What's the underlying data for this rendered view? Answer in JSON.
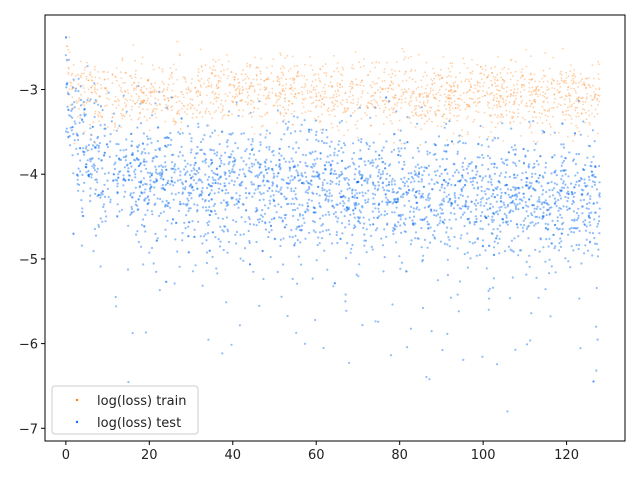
{
  "chart_data": {
    "type": "scatter",
    "title": "",
    "xlabel": "",
    "ylabel": "",
    "xlim": [
      -5,
      134
    ],
    "ylim": [
      -7.15,
      -2.12
    ],
    "x_ticks": [
      0,
      20,
      40,
      60,
      80,
      100,
      120
    ],
    "y_ticks": [
      -7,
      -6,
      -5,
      -4,
      -3
    ],
    "x_tick_labels": [
      "0",
      "20",
      "40",
      "60",
      "80",
      "100",
      "120"
    ],
    "y_tick_labels": [
      "−7",
      "−6",
      "−5",
      "−4",
      "−3"
    ],
    "grid": false,
    "legend_position": "lower-left",
    "series": [
      {
        "name": "log(loss) train",
        "color": "#ff7f0e",
        "x_range": [
          0,
          128
        ],
        "trend": [
          {
            "x": 0,
            "y": -2.55
          },
          {
            "x": 1,
            "y": -2.85
          },
          {
            "x": 3,
            "y": -3.02
          },
          {
            "x": 10,
            "y": -3.1
          },
          {
            "x": 20,
            "y": -3.08
          },
          {
            "x": 40,
            "y": -3.04
          },
          {
            "x": 60,
            "y": -3.05
          },
          {
            "x": 80,
            "y": -3.06
          },
          {
            "x": 100,
            "y": -3.08
          },
          {
            "x": 128,
            "y": -3.1
          }
        ],
        "spread": 0.2
      },
      {
        "name": "log(loss) test",
        "color": "#0b6cf0",
        "x_range": [
          0,
          128
        ],
        "trend": [
          {
            "x": 0,
            "y": -2.6
          },
          {
            "x": 1,
            "y": -3.4
          },
          {
            "x": 3,
            "y": -3.7
          },
          {
            "x": 10,
            "y": -3.9
          },
          {
            "x": 20,
            "y": -4.0
          },
          {
            "x": 40,
            "y": -4.1
          },
          {
            "x": 60,
            "y": -4.15
          },
          {
            "x": 80,
            "y": -4.2
          },
          {
            "x": 100,
            "y": -4.25
          },
          {
            "x": 128,
            "y": -4.3
          }
        ],
        "spread": 0.35
      }
    ]
  }
}
